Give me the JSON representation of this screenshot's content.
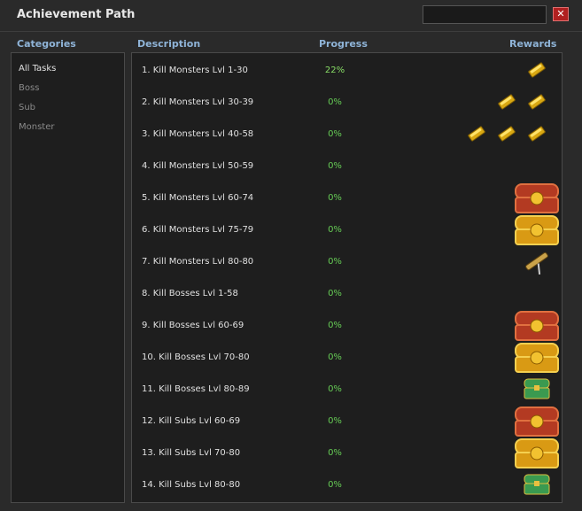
{
  "header": {
    "title": "Achievement Path"
  },
  "categories": {
    "heading": "Categories",
    "items": [
      "All Tasks",
      "Boss",
      "Sub",
      "Monster"
    ]
  },
  "table": {
    "columns": [
      "Description",
      "Progress",
      "Rewards"
    ],
    "rows": [
      [
        "1. Kill Monsters Lvl 1-30",
        "22%"
      ],
      [
        "2. Kill Monsters Lvl 30-39",
        "0%"
      ],
      [
        "3. Kill Monsters Lvl 40-58",
        "0%"
      ],
      [
        "4. Kill Monsters Lvl 50-59",
        "0%"
      ],
      [
        "5. Kill Monsters Lvl 60-74",
        "0%"
      ],
      [
        "6. Kill Monsters Lvl 75-79",
        "0%"
      ],
      [
        "7. Kill Monsters Lvl 80-80",
        "0%"
      ],
      [
        "8. Kill Bosses Lvl 1-58",
        "0%"
      ],
      [
        "9. Kill Bosses Lvl 60-69",
        "0%"
      ],
      [
        "10. Kill Bosses Lvl 70-80",
        "0%"
      ],
      [
        "11. Kill Bosses Lvl 80-89",
        "0%"
      ],
      [
        "12. Kill Subs Lvl 60-69",
        "0%"
      ],
      [
        "13. Kill Subs Lvl 70-80",
        "0%"
      ],
      [
        "14. Kill Subs Lvl 80-80",
        "0%"
      ]
    ]
  }
}
